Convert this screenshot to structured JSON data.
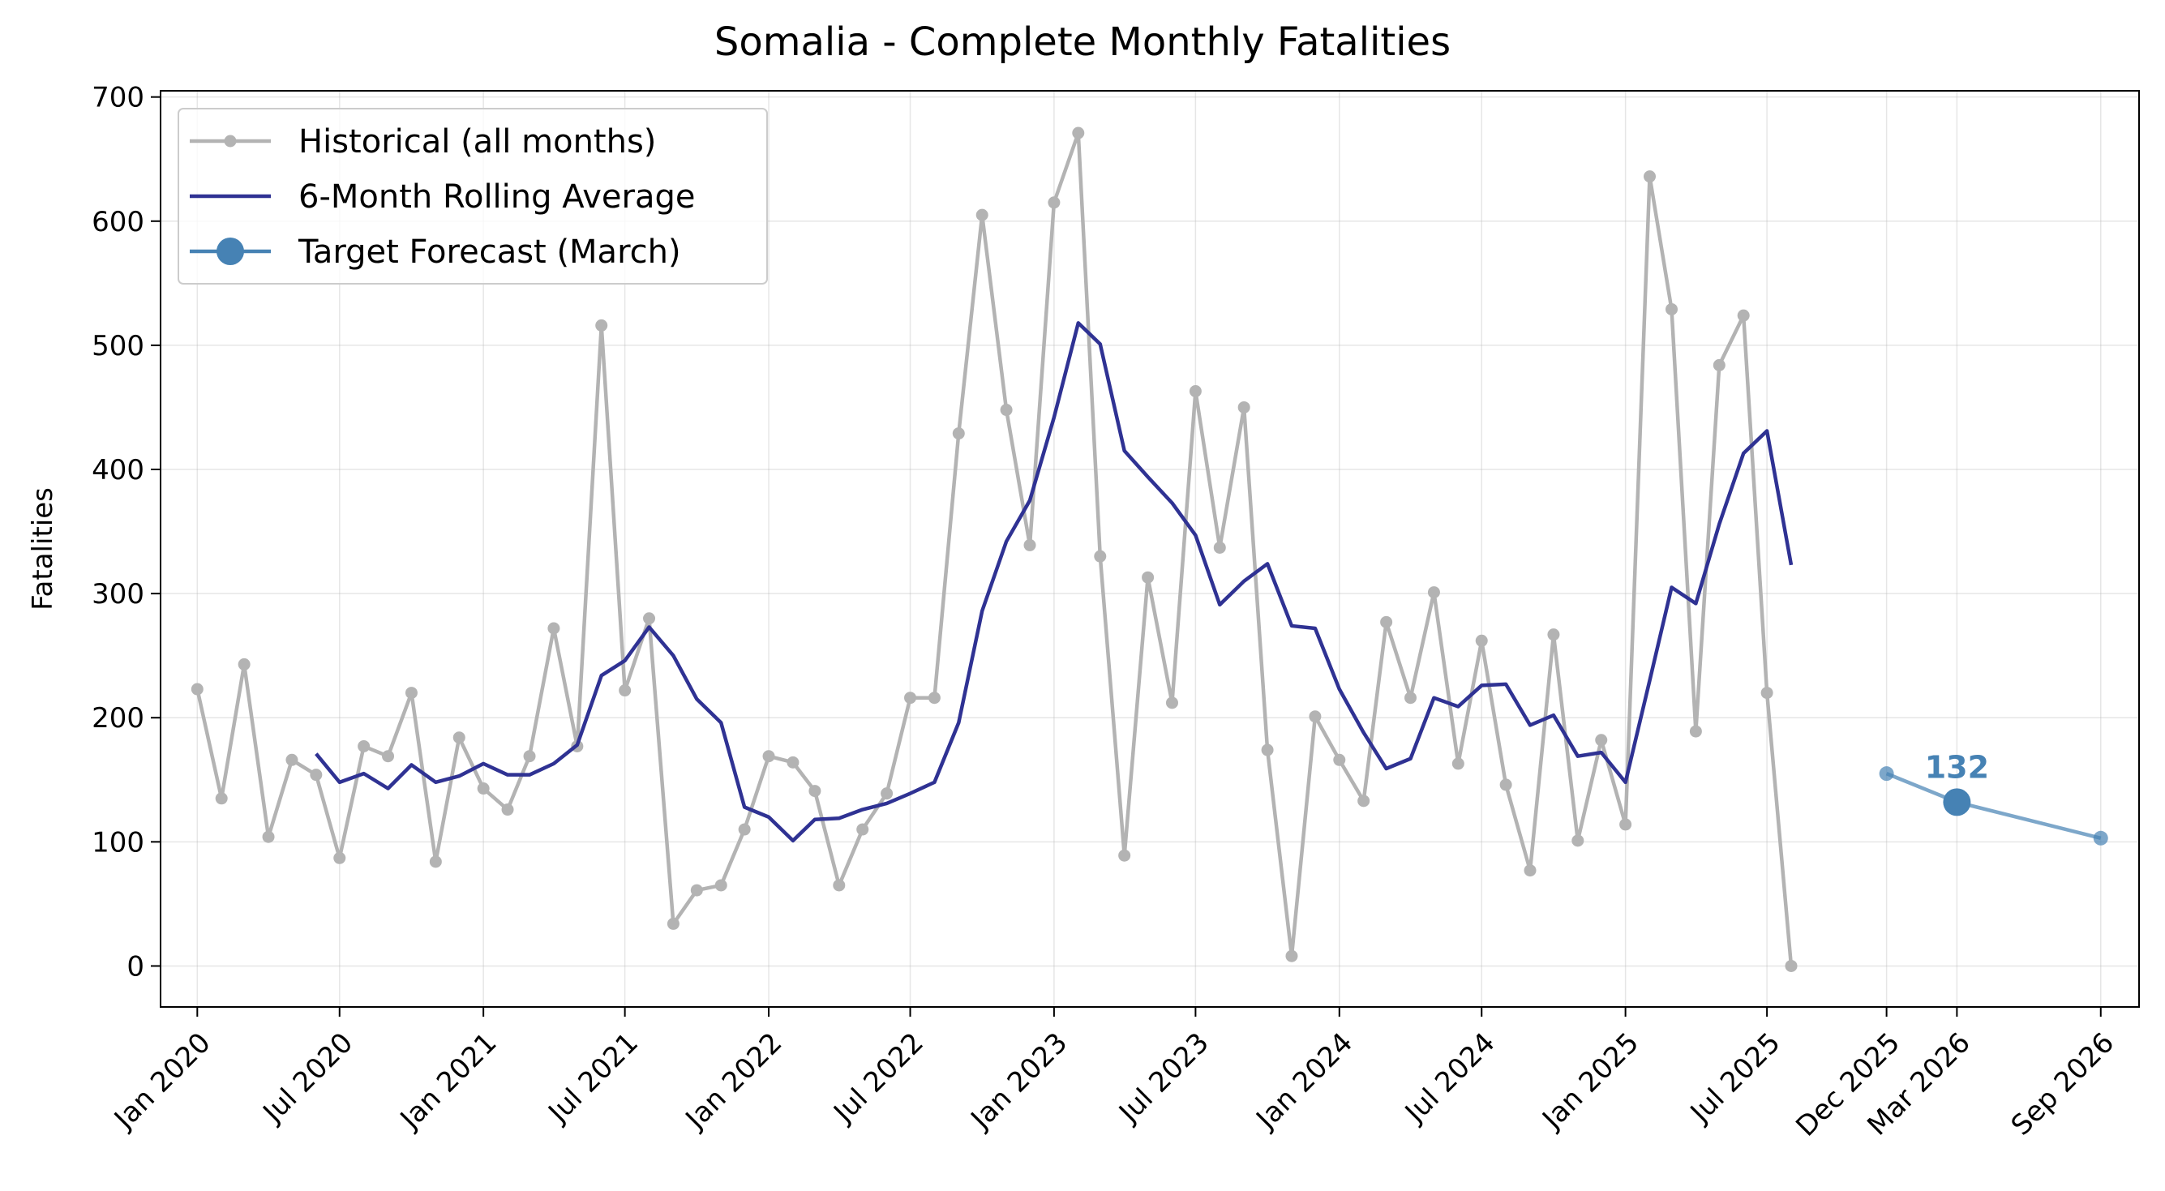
{
  "chart_data": {
    "type": "line",
    "title": "Somalia - Complete Monthly Fatalities",
    "xlabel": "",
    "ylabel": "Fatalities",
    "ylim": [
      -33,
      705
    ],
    "xlim": [
      "2019-11-15",
      "2026-10-20"
    ],
    "y_ticks": [
      0,
      100,
      200,
      300,
      400,
      500,
      600,
      700
    ],
    "x_ticks": [
      {
        "date": "2020-01-01",
        "label": "Jan 2020"
      },
      {
        "date": "2020-07-01",
        "label": "Jul 2020"
      },
      {
        "date": "2021-01-01",
        "label": "Jan 2021"
      },
      {
        "date": "2021-07-01",
        "label": "Jul 2021"
      },
      {
        "date": "2022-01-01",
        "label": "Jan 2022"
      },
      {
        "date": "2022-07-01",
        "label": "Jul 2022"
      },
      {
        "date": "2023-01-01",
        "label": "Jan 2023"
      },
      {
        "date": "2023-07-01",
        "label": "Jul 2023"
      },
      {
        "date": "2024-01-01",
        "label": "Jan 2024"
      },
      {
        "date": "2024-07-01",
        "label": "Jul 2024"
      },
      {
        "date": "2025-01-01",
        "label": "Jan 2025"
      },
      {
        "date": "2025-07-01",
        "label": "Jul 2025"
      },
      {
        "date": "2025-12-01",
        "label": "Dec 2025"
      },
      {
        "date": "2026-03-01",
        "label": "Mar 2026"
      },
      {
        "date": "2026-09-01",
        "label": "Sep 2026"
      }
    ],
    "grid": true,
    "legend_position": "top-left",
    "series": [
      {
        "name": "Historical (all months)",
        "color": "#b3b3b3",
        "marker": "dot",
        "x": [
          "2020-01-01",
          "2020-02-01",
          "2020-03-01",
          "2020-04-01",
          "2020-05-01",
          "2020-06-01",
          "2020-07-01",
          "2020-08-01",
          "2020-09-01",
          "2020-10-01",
          "2020-11-01",
          "2020-12-01",
          "2021-01-01",
          "2021-02-01",
          "2021-03-01",
          "2021-04-01",
          "2021-05-01",
          "2021-06-01",
          "2021-07-01",
          "2021-08-01",
          "2021-09-01",
          "2021-10-01",
          "2021-11-01",
          "2021-12-01",
          "2022-01-01",
          "2022-02-01",
          "2022-03-01",
          "2022-04-01",
          "2022-05-01",
          "2022-06-01",
          "2022-07-01",
          "2022-08-01",
          "2022-09-01",
          "2022-10-01",
          "2022-11-01",
          "2022-12-01",
          "2023-01-01",
          "2023-02-01",
          "2023-03-01",
          "2023-04-01",
          "2023-05-01",
          "2023-06-01",
          "2023-07-01",
          "2023-08-01",
          "2023-09-01",
          "2023-10-01",
          "2023-11-01",
          "2023-12-01",
          "2024-01-01",
          "2024-02-01",
          "2024-03-01",
          "2024-04-01",
          "2024-05-01",
          "2024-06-01",
          "2024-07-01",
          "2024-08-01",
          "2024-09-01",
          "2024-10-01",
          "2024-11-01",
          "2024-12-01",
          "2025-01-01",
          "2025-02-01",
          "2025-03-01",
          "2025-04-01",
          "2025-05-01",
          "2025-06-01",
          "2025-07-01",
          "2025-08-01"
        ],
        "values": [
          223,
          135,
          243,
          104,
          166,
          154,
          87,
          177,
          169,
          220,
          84,
          184,
          143,
          126,
          169,
          272,
          177,
          516,
          222,
          280,
          34,
          61,
          65,
          110,
          169,
          164,
          141,
          65,
          110,
          139,
          216,
          216,
          429,
          605,
          448,
          339,
          615,
          671,
          330,
          89,
          313,
          212,
          463,
          337,
          450,
          174,
          8,
          201,
          166,
          133,
          277,
          216,
          301,
          163,
          262,
          146,
          77,
          267,
          101,
          182,
          114,
          636,
          529,
          189,
          484,
          524,
          220,
          0
        ]
      },
      {
        "name": "6-Month Rolling Average",
        "color": "#2f3293",
        "x": [
          "2020-06-01",
          "2020-07-01",
          "2020-08-01",
          "2020-09-01",
          "2020-10-01",
          "2020-11-01",
          "2020-12-01",
          "2021-01-01",
          "2021-02-01",
          "2021-03-01",
          "2021-04-01",
          "2021-05-01",
          "2021-06-01",
          "2021-07-01",
          "2021-08-01",
          "2021-09-01",
          "2021-10-01",
          "2021-11-01",
          "2021-12-01",
          "2022-01-01",
          "2022-02-01",
          "2022-03-01",
          "2022-04-01",
          "2022-05-01",
          "2022-06-01",
          "2022-07-01",
          "2022-08-01",
          "2022-09-01",
          "2022-10-01",
          "2022-11-01",
          "2022-12-01",
          "2023-01-01",
          "2023-02-01",
          "2023-03-01",
          "2023-04-01",
          "2023-05-01",
          "2023-06-01",
          "2023-07-01",
          "2023-08-01",
          "2023-09-01",
          "2023-10-01",
          "2023-11-01",
          "2023-12-01",
          "2024-01-01",
          "2024-02-01",
          "2024-03-01",
          "2024-04-01",
          "2024-05-01",
          "2024-06-01",
          "2024-07-01",
          "2024-08-01",
          "2024-09-01",
          "2024-10-01",
          "2024-11-01",
          "2024-12-01",
          "2025-01-01",
          "2025-02-01",
          "2025-03-01",
          "2025-04-01",
          "2025-05-01",
          "2025-06-01",
          "2025-07-01",
          "2025-08-01"
        ],
        "values": [
          171,
          148,
          155,
          143,
          162,
          148,
          153,
          163,
          154,
          154,
          163,
          178,
          234,
          246,
          273,
          250,
          215,
          196,
          128,
          120,
          101,
          118,
          119,
          126,
          131,
          139,
          148,
          196,
          286,
          342,
          375,
          442,
          518,
          501,
          415,
          394,
          373,
          347,
          291,
          310,
          324,
          274,
          272,
          223,
          188,
          159,
          167,
          216,
          209,
          226,
          227,
          194,
          202,
          169,
          172,
          148,
          230,
          305,
          292,
          356,
          413,
          431,
          323
        ]
      },
      {
        "name": "Target Forecast (March)",
        "color": "#4682b4",
        "marker": "large-dot",
        "x": [
          "2025-12-01",
          "2026-03-01",
          "2026-09-01"
        ],
        "values": [
          155,
          132,
          103
        ],
        "highlight_index": 1
      }
    ],
    "annotations": [
      {
        "text": "132",
        "x": "2026-03-01",
        "y": 132
      }
    ]
  }
}
